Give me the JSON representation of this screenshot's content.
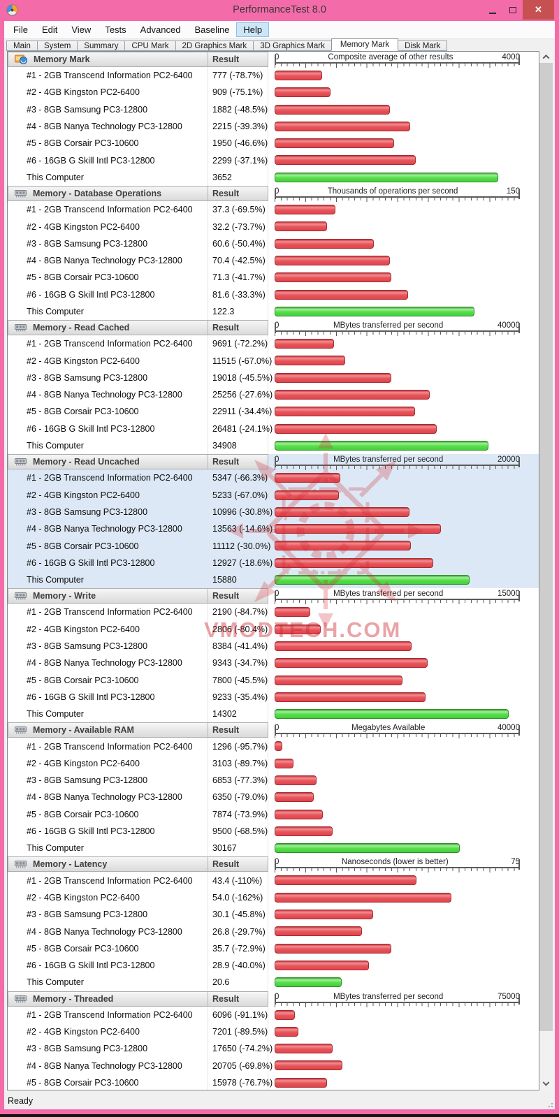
{
  "window": {
    "title": "PerformanceTest 8.0",
    "status": "Ready"
  },
  "menu": {
    "items": [
      "File",
      "Edit",
      "View",
      "Tests",
      "Advanced",
      "Baseline",
      "Help"
    ],
    "highlighted": "Help"
  },
  "tabs": {
    "items": [
      "Main",
      "System",
      "Summary",
      "CPU Mark",
      "2D Graphics Mark",
      "3D Graphics Mark",
      "Memory Mark",
      "Disk Mark"
    ],
    "active": "Memory Mark"
  },
  "table": {
    "result_header": "Result"
  },
  "watermark": {
    "text": "VMODTECH.COM"
  },
  "colors": {
    "titlebar_pink": "#f46ba9",
    "close_red": "#c75050",
    "bar_red": "#e0434a",
    "bar_green": "#46cf3c",
    "selected_row_bg": "#dce8f5",
    "header_text": "#3f3f3f"
  },
  "chart_data": [
    {
      "type": "bar",
      "title": "Memory Mark",
      "icon": "memory-mark-icon",
      "scale_label": "Composite average of other results",
      "scale_min_label": "0",
      "scale_max_label": "4000",
      "max": 4000,
      "selected": false,
      "rows": [
        {
          "label": "#1 - 2GB Transcend Information PC2-6400",
          "result": "777 (-78.7%)",
          "value": 777
        },
        {
          "label": "#2 - 4GB Kingston PC2-6400",
          "result": "909 (-75.1%)",
          "value": 909
        },
        {
          "label": "#3 - 8GB Samsung PC3-12800",
          "result": "1882 (-48.5%)",
          "value": 1882
        },
        {
          "label": "#4 - 8GB Nanya Technology PC3-12800",
          "result": "2215 (-39.3%)",
          "value": 2215
        },
        {
          "label": "#5 - 8GB Corsair PC3-10600",
          "result": "1950 (-46.6%)",
          "value": 1950
        },
        {
          "label": "#6 - 16GB G Skill Intl PC3-12800",
          "result": "2299 (-37.1%)",
          "value": 2299
        },
        {
          "label": "This Computer",
          "result": "3652",
          "value": 3652,
          "this_computer": true
        }
      ]
    },
    {
      "type": "bar",
      "title": "Memory - Database Operations",
      "icon": "ram-chip-icon",
      "scale_label": "Thousands of operations per second",
      "scale_min_label": "0",
      "scale_max_label": "150",
      "max": 150,
      "selected": false,
      "rows": [
        {
          "label": "#1 - 2GB Transcend Information PC2-6400",
          "result": "37.3 (-69.5%)",
          "value": 37.3
        },
        {
          "label": "#2 - 4GB Kingston PC2-6400",
          "result": "32.2 (-73.7%)",
          "value": 32.2
        },
        {
          "label": "#3 - 8GB Samsung PC3-12800",
          "result": "60.6 (-50.4%)",
          "value": 60.6
        },
        {
          "label": "#4 - 8GB Nanya Technology PC3-12800",
          "result": "70.4 (-42.5%)",
          "value": 70.4
        },
        {
          "label": "#5 - 8GB Corsair PC3-10600",
          "result": "71.3 (-41.7%)",
          "value": 71.3
        },
        {
          "label": "#6 - 16GB G Skill Intl PC3-12800",
          "result": "81.6 (-33.3%)",
          "value": 81.6
        },
        {
          "label": "This Computer",
          "result": "122.3",
          "value": 122.3,
          "this_computer": true
        }
      ]
    },
    {
      "type": "bar",
      "title": "Memory - Read Cached",
      "icon": "ram-chip-icon",
      "scale_label": "MBytes transferred per second",
      "scale_min_label": "0",
      "scale_max_label": "40000",
      "max": 40000,
      "selected": false,
      "rows": [
        {
          "label": "#1 - 2GB Transcend Information PC2-6400",
          "result": "9691 (-72.2%)",
          "value": 9691
        },
        {
          "label": "#2 - 4GB Kingston PC2-6400",
          "result": "11515 (-67.0%)",
          "value": 11515
        },
        {
          "label": "#3 - 8GB Samsung PC3-12800",
          "result": "19018 (-45.5%)",
          "value": 19018
        },
        {
          "label": "#4 - 8GB Nanya Technology PC3-12800",
          "result": "25256 (-27.6%)",
          "value": 25256
        },
        {
          "label": "#5 - 8GB Corsair PC3-10600",
          "result": "22911 (-34.4%)",
          "value": 22911
        },
        {
          "label": "#6 - 16GB G Skill Intl PC3-12800",
          "result": "26481 (-24.1%)",
          "value": 26481
        },
        {
          "label": "This Computer",
          "result": "34908",
          "value": 34908,
          "this_computer": true
        }
      ]
    },
    {
      "type": "bar",
      "title": "Memory - Read Uncached",
      "icon": "ram-chip-icon",
      "scale_label": "MBytes transferred per second",
      "scale_min_label": "0",
      "scale_max_label": "20000",
      "max": 20000,
      "selected": true,
      "rows": [
        {
          "label": "#1 - 2GB Transcend Information PC2-6400",
          "result": "5347 (-66.3%)",
          "value": 5347
        },
        {
          "label": "#2 - 4GB Kingston PC2-6400",
          "result": "5233 (-67.0%)",
          "value": 5233
        },
        {
          "label": "#3 - 8GB Samsung PC3-12800",
          "result": "10996 (-30.8%)",
          "value": 10996
        },
        {
          "label": "#4 - 8GB Nanya Technology PC3-12800",
          "result": "13563 (-14.6%)",
          "value": 13563
        },
        {
          "label": "#5 - 8GB Corsair PC3-10600",
          "result": "11112 (-30.0%)",
          "value": 11112
        },
        {
          "label": "#6 - 16GB G Skill Intl PC3-12800",
          "result": "12927 (-18.6%)",
          "value": 12927
        },
        {
          "label": "This Computer",
          "result": "15880",
          "value": 15880,
          "this_computer": true
        }
      ]
    },
    {
      "type": "bar",
      "title": "Memory - Write",
      "icon": "ram-chip-icon",
      "scale_label": "MBytes transferred per second",
      "scale_min_label": "0",
      "scale_max_label": "15000",
      "max": 15000,
      "selected": false,
      "rows": [
        {
          "label": "#1 - 2GB Transcend Information PC2-6400",
          "result": "2190 (-84.7%)",
          "value": 2190
        },
        {
          "label": "#2 - 4GB Kingston PC2-6400",
          "result": "2806 (-80.4%)",
          "value": 2806
        },
        {
          "label": "#3 - 8GB Samsung PC3-12800",
          "result": "8384 (-41.4%)",
          "value": 8384
        },
        {
          "label": "#4 - 8GB Nanya Technology PC3-12800",
          "result": "9343 (-34.7%)",
          "value": 9343
        },
        {
          "label": "#5 - 8GB Corsair PC3-10600",
          "result": "7800 (-45.5%)",
          "value": 7800
        },
        {
          "label": "#6 - 16GB G Skill Intl PC3-12800",
          "result": "9233 (-35.4%)",
          "value": 9233
        },
        {
          "label": "This Computer",
          "result": "14302",
          "value": 14302,
          "this_computer": true
        }
      ]
    },
    {
      "type": "bar",
      "title": "Memory - Available RAM",
      "icon": "ram-chip-icon",
      "scale_label": "Megabytes Available",
      "scale_min_label": "0",
      "scale_max_label": "40000",
      "max": 40000,
      "selected": false,
      "rows": [
        {
          "label": "#1 - 2GB Transcend Information PC2-6400",
          "result": "1296 (-95.7%)",
          "value": 1296
        },
        {
          "label": "#2 - 4GB Kingston PC2-6400",
          "result": "3103 (-89.7%)",
          "value": 3103
        },
        {
          "label": "#3 - 8GB Samsung PC3-12800",
          "result": "6853 (-77.3%)",
          "value": 6853
        },
        {
          "label": "#4 - 8GB Nanya Technology PC3-12800",
          "result": "6350 (-79.0%)",
          "value": 6350
        },
        {
          "label": "#5 - 8GB Corsair PC3-10600",
          "result": "7874 (-73.9%)",
          "value": 7874
        },
        {
          "label": "#6 - 16GB G Skill Intl PC3-12800",
          "result": "9500 (-68.5%)",
          "value": 9500
        },
        {
          "label": "This Computer",
          "result": "30167",
          "value": 30167,
          "this_computer": true
        }
      ]
    },
    {
      "type": "bar",
      "title": "Memory - Latency",
      "icon": "ram-chip-icon",
      "scale_label": "Nanoseconds (lower is better)",
      "scale_min_label": "0",
      "scale_max_label": "75",
      "max": 75,
      "selected": false,
      "rows": [
        {
          "label": "#1 - 2GB Transcend Information PC2-6400",
          "result": "43.4 (-110%)",
          "value": 43.4
        },
        {
          "label": "#2 - 4GB Kingston PC2-6400",
          "result": "54.0 (-162%)",
          "value": 54.0
        },
        {
          "label": "#3 - 8GB Samsung PC3-12800",
          "result": "30.1 (-45.8%)",
          "value": 30.1
        },
        {
          "label": "#4 - 8GB Nanya Technology PC3-12800",
          "result": "26.8 (-29.7%)",
          "value": 26.8
        },
        {
          "label": "#5 - 8GB Corsair PC3-10600",
          "result": "35.7 (-72.9%)",
          "value": 35.7
        },
        {
          "label": "#6 - 16GB G Skill Intl PC3-12800",
          "result": "28.9 (-40.0%)",
          "value": 28.9
        },
        {
          "label": "This Computer",
          "result": "20.6",
          "value": 20.6,
          "this_computer": true
        }
      ]
    },
    {
      "type": "bar",
      "title": "Memory - Threaded",
      "icon": "ram-chip-icon",
      "scale_label": "MBytes transferred per second",
      "scale_min_label": "0",
      "scale_max_label": "75000",
      "max": 75000,
      "selected": false,
      "rows": [
        {
          "label": "#1 - 2GB Transcend Information PC2-6400",
          "result": "6096 (-91.1%)",
          "value": 6096
        },
        {
          "label": "#2 - 4GB Kingston PC2-6400",
          "result": "7201 (-89.5%)",
          "value": 7201
        },
        {
          "label": "#3 - 8GB Samsung PC3-12800",
          "result": "17650 (-74.2%)",
          "value": 17650
        },
        {
          "label": "#4 - 8GB Nanya Technology PC3-12800",
          "result": "20705 (-69.8%)",
          "value": 20705
        },
        {
          "label": "#5 - 8GB Corsair PC3-10600",
          "result": "15978 (-76.7%)",
          "value": 15978
        }
      ]
    }
  ]
}
